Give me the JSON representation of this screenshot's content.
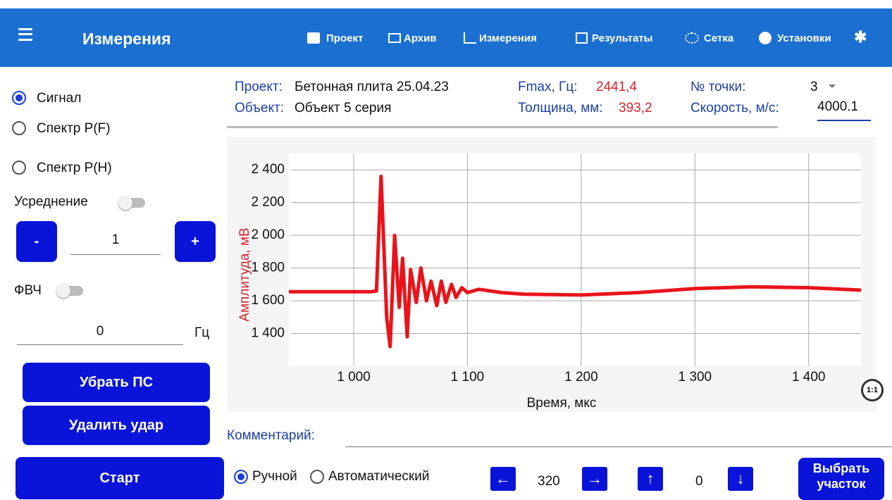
{
  "app_bar": {
    "title": "Измерения",
    "nav": [
      "Проект",
      "Архив",
      "Измерения",
      "Результаты",
      "Сетка",
      "Установки"
    ]
  },
  "left_panel": {
    "modes": [
      "Сигнал",
      "Спектр P(F)",
      "Спектр P(H)"
    ],
    "averaging_label": "Усреднение",
    "minus": "-",
    "count": "1",
    "plus": "+",
    "hpf_label": "ФВЧ",
    "hpf_value": "0",
    "hpf_unit": "Гц",
    "buttons": [
      "Убрать ПС",
      "Удалить удар",
      "Старт"
    ]
  },
  "info": {
    "project_label": "Проект:",
    "project": "Бетонная плита 25.04.23",
    "object_label": "Объект:",
    "object": "Объект 5 серия",
    "fmax_label": "Fmax, Гц:",
    "fmax": "2441,4",
    "thickness_label": "Толщина, мм:",
    "thickness": "393,2",
    "point_label": "№ точки:",
    "point": "3",
    "speed_label": "Скорость, м/с:",
    "speed": "4000.1"
  },
  "chart": {
    "type": "line",
    "x_label": "Время, мкс",
    "y_label": "Амплитуда, мВ",
    "xlim": [
      943,
      1446
    ],
    "ylim": [
      1200,
      2500
    ],
    "xticks": [
      {
        "value": 1000,
        "label": "1 000"
      },
      {
        "value": 1100,
        "label": "1 100"
      },
      {
        "value": 1200,
        "label": "1 200"
      },
      {
        "value": 1300,
        "label": "1 300"
      },
      {
        "value": 1400,
        "label": "1 400"
      }
    ],
    "yticks": [
      {
        "value": 1400,
        "label": "1 400"
      },
      {
        "value": 1600,
        "label": "1 600"
      },
      {
        "value": 1800,
        "label": "1 800"
      },
      {
        "value": 2000,
        "label": "2 000"
      },
      {
        "value": 2200,
        "label": "2 200"
      },
      {
        "value": 2400,
        "label": "2 400"
      }
    ],
    "grid": true,
    "color": "#e8141b",
    "x": [
      943,
      1015,
      1020,
      1024,
      1029,
      1032,
      1036,
      1040,
      1043,
      1047,
      1050,
      1055,
      1059,
      1064,
      1068,
      1073,
      1077,
      1081,
      1086,
      1090,
      1095,
      1100,
      1110,
      1130,
      1150,
      1200,
      1250,
      1300,
      1350,
      1400,
      1446
    ],
    "values": [
      1655,
      1655,
      1660,
      2360,
      1500,
      1320,
      2000,
      1560,
      1860,
      1380,
      1790,
      1590,
      1800,
      1600,
      1720,
      1570,
      1720,
      1590,
      1700,
      1620,
      1680,
      1650,
      1670,
      1650,
      1640,
      1635,
      1650,
      1675,
      1685,
      1680,
      1665
    ]
  },
  "bottom": {
    "comment_label": "Комментарий:",
    "manual": "Ручной",
    "auto": "Автоматический",
    "shift": "320",
    "offset": "0",
    "select": [
      "Выбрать",
      "участок"
    ]
  }
}
